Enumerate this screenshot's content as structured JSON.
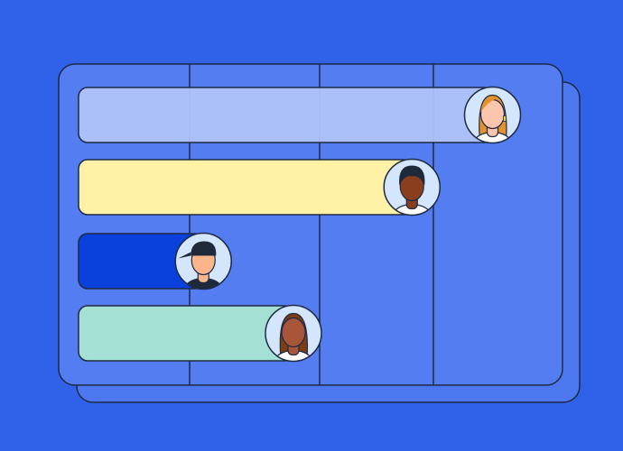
{
  "colors": {
    "background": "#2F62E8",
    "card": "#537DF0",
    "card_back": "#4C77EE",
    "outline": "#1E2A44",
    "avatar_bg": "#D3E6FB"
  },
  "bars": [
    {
      "fill_fraction": 0.9,
      "color": "#B3C6FA",
      "opacity": 0.92,
      "avatar": {
        "skin": "#FBC6AC",
        "hair": "#E4922E",
        "style": "long-hair-earring"
      }
    },
    {
      "fill_fraction": 0.73,
      "color": "#FFF2A6",
      "opacity": 1,
      "avatar": {
        "skin": "#8B3E1E",
        "hair": "#1E2A3A",
        "style": "short-hair"
      }
    },
    {
      "fill_fraction": 0.29,
      "color": "#0A40DB",
      "opacity": 1,
      "avatar": {
        "skin": "#FBB58A",
        "hair": "#1E2A3A",
        "style": "cap"
      }
    },
    {
      "fill_fraction": 0.48,
      "color": "#A5E0D5",
      "opacity": 1,
      "avatar": {
        "skin": "#A8553A",
        "hair": "#7A3E12",
        "style": "long-hair"
      }
    }
  ]
}
